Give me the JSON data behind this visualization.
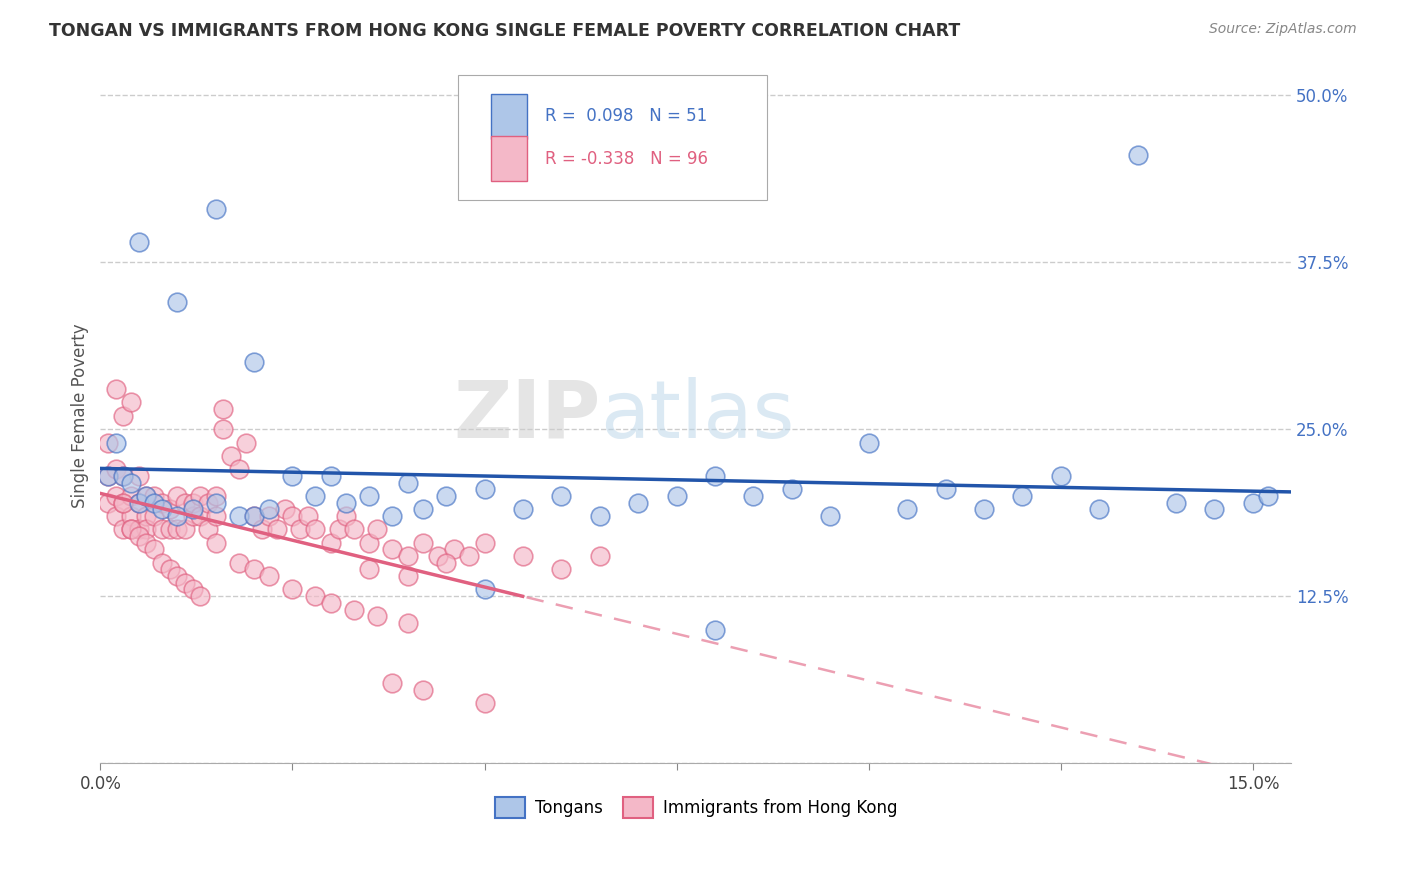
{
  "title": "TONGAN VS IMMIGRANTS FROM HONG KONG SINGLE FEMALE POVERTY CORRELATION CHART",
  "source": "Source: ZipAtlas.com",
  "ylabel": "Single Female Poverty",
  "x_ticks": [
    0.0,
    0.025,
    0.05,
    0.075,
    0.1,
    0.125,
    0.15
  ],
  "y_ticks": [
    0.0,
    0.125,
    0.25,
    0.375,
    0.5
  ],
  "xlim": [
    0.0,
    0.155
  ],
  "ylim": [
    0.0,
    0.52
  ],
  "legend_labels": [
    "Tongans",
    "Immigrants from Hong Kong"
  ],
  "blue_R": "0.098",
  "blue_N": "51",
  "pink_R": "-0.338",
  "pink_N": "96",
  "blue_color": "#aec6e8",
  "pink_color": "#f4b8c8",
  "blue_edge_color": "#4472c4",
  "pink_edge_color": "#e06080",
  "blue_line_color": "#2255aa",
  "pink_line_color": "#e06080",
  "watermark_zip": "ZIP",
  "watermark_atlas": "atlas",
  "blue_scatter_x": [
    0.001,
    0.002,
    0.003,
    0.004,
    0.005,
    0.006,
    0.007,
    0.008,
    0.01,
    0.012,
    0.015,
    0.018,
    0.02,
    0.022,
    0.025,
    0.028,
    0.03,
    0.032,
    0.035,
    0.038,
    0.04,
    0.042,
    0.045,
    0.05,
    0.055,
    0.06,
    0.065,
    0.07,
    0.075,
    0.08,
    0.085,
    0.09,
    0.095,
    0.1,
    0.105,
    0.11,
    0.115,
    0.12,
    0.125,
    0.13,
    0.135,
    0.14,
    0.145,
    0.15,
    0.152,
    0.005,
    0.01,
    0.015,
    0.02,
    0.05,
    0.08
  ],
  "blue_scatter_y": [
    0.215,
    0.24,
    0.215,
    0.21,
    0.195,
    0.2,
    0.195,
    0.19,
    0.185,
    0.19,
    0.195,
    0.185,
    0.185,
    0.19,
    0.215,
    0.2,
    0.215,
    0.195,
    0.2,
    0.185,
    0.21,
    0.19,
    0.2,
    0.205,
    0.19,
    0.2,
    0.185,
    0.195,
    0.2,
    0.215,
    0.2,
    0.205,
    0.185,
    0.24,
    0.19,
    0.205,
    0.19,
    0.2,
    0.215,
    0.19,
    0.455,
    0.195,
    0.19,
    0.195,
    0.2,
    0.39,
    0.345,
    0.415,
    0.3,
    0.13,
    0.1
  ],
  "pink_scatter_x": [
    0.001,
    0.001,
    0.001,
    0.002,
    0.002,
    0.002,
    0.003,
    0.003,
    0.003,
    0.004,
    0.004,
    0.004,
    0.005,
    0.005,
    0.005,
    0.006,
    0.006,
    0.006,
    0.007,
    0.007,
    0.008,
    0.008,
    0.009,
    0.009,
    0.01,
    0.01,
    0.011,
    0.011,
    0.012,
    0.012,
    0.013,
    0.013,
    0.014,
    0.014,
    0.015,
    0.015,
    0.016,
    0.016,
    0.017,
    0.018,
    0.019,
    0.02,
    0.021,
    0.022,
    0.023,
    0.024,
    0.025,
    0.026,
    0.027,
    0.028,
    0.03,
    0.031,
    0.032,
    0.033,
    0.035,
    0.036,
    0.038,
    0.04,
    0.042,
    0.044,
    0.046,
    0.048,
    0.05,
    0.055,
    0.06,
    0.065,
    0.035,
    0.04,
    0.045,
    0.003,
    0.004,
    0.005,
    0.006,
    0.007,
    0.008,
    0.009,
    0.01,
    0.011,
    0.012,
    0.013,
    0.015,
    0.018,
    0.02,
    0.022,
    0.025,
    0.028,
    0.03,
    0.033,
    0.036,
    0.04,
    0.002,
    0.003,
    0.004,
    0.038,
    0.042,
    0.05
  ],
  "pink_scatter_y": [
    0.215,
    0.195,
    0.24,
    0.22,
    0.2,
    0.185,
    0.195,
    0.215,
    0.175,
    0.185,
    0.2,
    0.175,
    0.195,
    0.215,
    0.175,
    0.2,
    0.185,
    0.175,
    0.2,
    0.185,
    0.195,
    0.175,
    0.19,
    0.175,
    0.2,
    0.175,
    0.195,
    0.175,
    0.185,
    0.195,
    0.2,
    0.185,
    0.175,
    0.195,
    0.2,
    0.185,
    0.265,
    0.25,
    0.23,
    0.22,
    0.24,
    0.185,
    0.175,
    0.185,
    0.175,
    0.19,
    0.185,
    0.175,
    0.185,
    0.175,
    0.165,
    0.175,
    0.185,
    0.175,
    0.165,
    0.175,
    0.16,
    0.155,
    0.165,
    0.155,
    0.16,
    0.155,
    0.165,
    0.155,
    0.145,
    0.155,
    0.145,
    0.14,
    0.15,
    0.195,
    0.175,
    0.17,
    0.165,
    0.16,
    0.15,
    0.145,
    0.14,
    0.135,
    0.13,
    0.125,
    0.165,
    0.15,
    0.145,
    0.14,
    0.13,
    0.125,
    0.12,
    0.115,
    0.11,
    0.105,
    0.28,
    0.26,
    0.27,
    0.06,
    0.055,
    0.045
  ]
}
